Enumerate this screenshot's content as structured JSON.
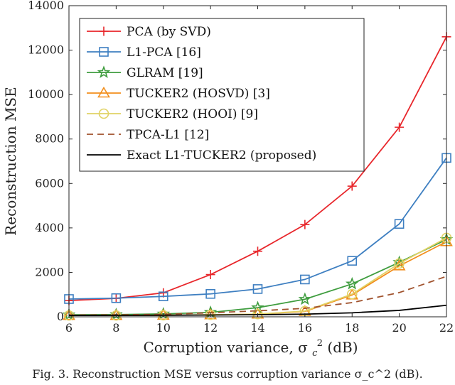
{
  "chart_data": {
    "type": "line",
    "x": [
      6,
      8,
      10,
      12,
      14,
      16,
      18,
      20,
      22
    ],
    "xlabel": "Corruption variance, σ_c^2 (dB)",
    "xlabel_main": "Corruption variance, σ",
    "xlabel_sub": "c",
    "xlabel_sup": "2",
    "xlabel_tail": " (dB)",
    "ylabel": "Reconstruction MSE",
    "xlim": [
      6,
      22
    ],
    "ylim": [
      0,
      14000
    ],
    "xticks": [
      "6",
      "8",
      "10",
      "12",
      "14",
      "16",
      "18",
      "20",
      "22"
    ],
    "yticks": [
      "0",
      "2000",
      "4000",
      "6000",
      "8000",
      "10000",
      "12000",
      "14000"
    ],
    "legend_position": "top-left",
    "series": [
      {
        "name": "PCA (by SVD)",
        "color": "#e8262b",
        "marker": "plus",
        "dash": "solid",
        "values": [
          730,
          830,
          1080,
          1900,
          2950,
          4150,
          5880,
          8530,
          12600
        ]
      },
      {
        "name": "L1-PCA [16]",
        "color": "#3e7fc1",
        "marker": "square",
        "dash": "solid",
        "values": [
          800,
          840,
          920,
          1030,
          1250,
          1680,
          2520,
          4180,
          7150
        ]
      },
      {
        "name": "GLRAM [19]",
        "color": "#3f9d3f",
        "marker": "star",
        "dash": "solid",
        "values": [
          90,
          100,
          130,
          200,
          410,
          790,
          1480,
          2450,
          3480
        ]
      },
      {
        "name": "TUCKER2 (HOSVD) [3]",
        "color": "#f28e1c",
        "marker": "triangle",
        "dash": "solid",
        "values": [
          60,
          60,
          70,
          90,
          120,
          240,
          980,
          2290,
          3380
        ]
      },
      {
        "name": "TUCKER2 (HOOI) [9]",
        "color": "#e1d265",
        "marker": "circle",
        "dash": "solid",
        "values": [
          60,
          60,
          70,
          90,
          120,
          260,
          1020,
          2400,
          3550
        ]
      },
      {
        "name": "TPCA-L1 [12]",
        "color": "#a0522d",
        "marker": "none",
        "dash": "dashed",
        "values": [
          80,
          90,
          110,
          180,
          270,
          380,
          640,
          1090,
          1820
        ]
      },
      {
        "name": "Exact L1-TUCKER2 (proposed)",
        "color": "#000000",
        "marker": "none",
        "dash": "solid",
        "values": [
          60,
          65,
          70,
          80,
          95,
          120,
          180,
          290,
          520
        ]
      }
    ]
  },
  "caption": "Fig. 3. Reconstruction MSE versus corruption variance σ_c^2 (dB)."
}
